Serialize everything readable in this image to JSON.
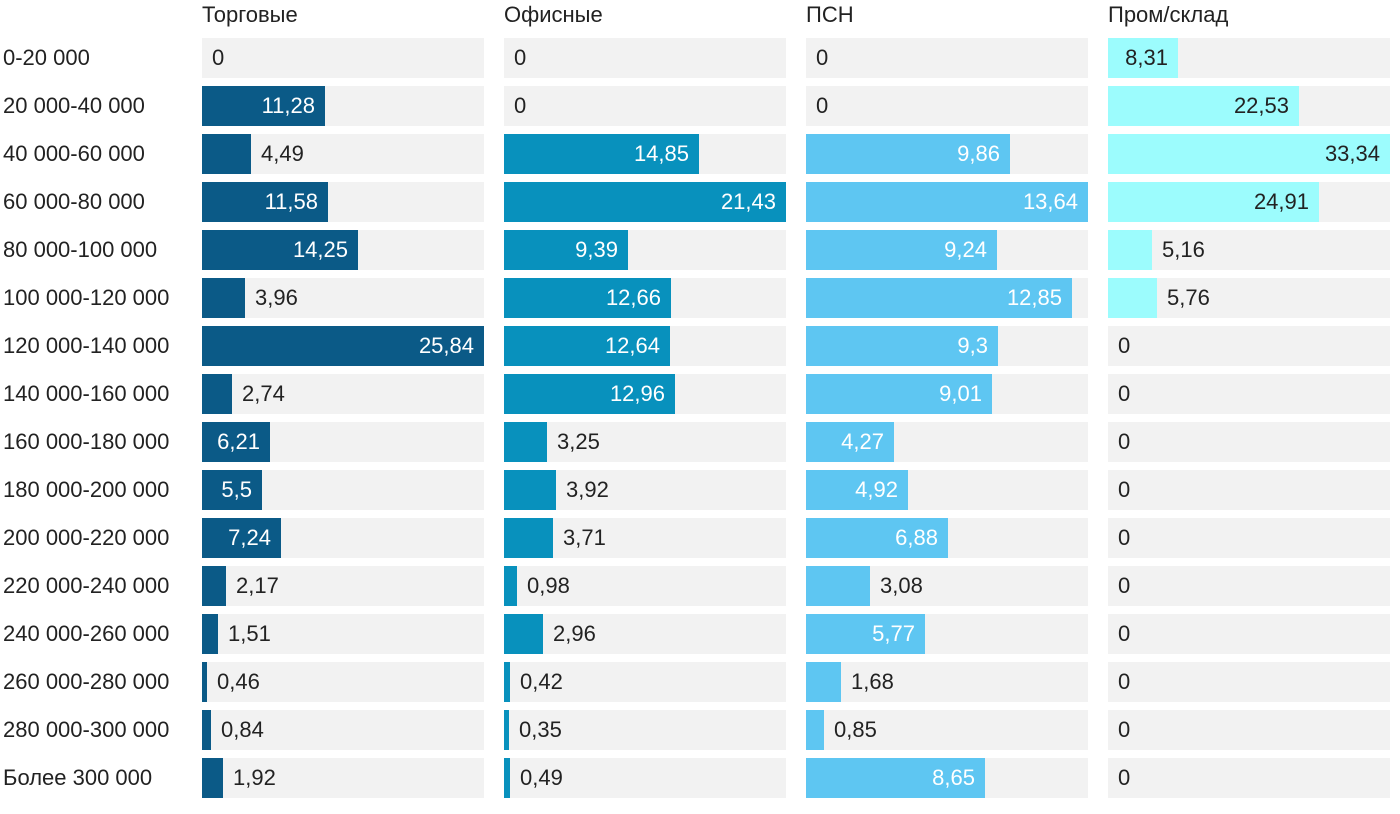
{
  "chart_data": {
    "type": "bar",
    "orientation": "horizontal",
    "layout": "small-multiples",
    "categories": [
      "0-20 000",
      "20 000-40 000",
      "40 000-60 000",
      "60 000-80 000",
      "80 000-100 000",
      "100 000-120 000",
      "120 000-140 000",
      "140 000-160 000",
      "160 000-180 000",
      "180 000-200 000",
      "200 000-220 000",
      "220 000-240 000",
      "240 000-260 000",
      "260 000-280 000",
      "280 000-300 000",
      "Более 300 000"
    ],
    "series": [
      {
        "name": "Торговые",
        "color": "#0b5a87",
        "values": [
          0,
          11.28,
          4.49,
          11.58,
          14.25,
          3.96,
          25.84,
          2.74,
          6.21,
          5.5,
          7.24,
          2.17,
          1.51,
          0.46,
          0.84,
          1.92
        ],
        "labels": [
          "0",
          "11,28",
          "4,49",
          "11,58",
          "14,25",
          "3,96",
          "25,84",
          "2,74",
          "6,21",
          "5,5",
          "7,24",
          "2,17",
          "1,51",
          "0,46",
          "0,84",
          "1,92"
        ]
      },
      {
        "name": "Офисные",
        "color": "#0891bd",
        "values": [
          0,
          0,
          14.85,
          21.43,
          9.39,
          12.66,
          12.64,
          12.96,
          3.25,
          3.92,
          3.71,
          0.98,
          2.96,
          0.42,
          0.35,
          0.49
        ],
        "labels": [
          "0",
          "0",
          "14,85",
          "21,43",
          "9,39",
          "12,66",
          "12,64",
          "12,96",
          "3,25",
          "3,92",
          "3,71",
          "0,98",
          "2,96",
          "0,42",
          "0,35",
          "0,49"
        ]
      },
      {
        "name": "ПСН",
        "color": "#5ec6f2",
        "values": [
          0,
          0,
          9.86,
          13.64,
          9.24,
          12.85,
          9.3,
          9.01,
          4.27,
          4.92,
          6.88,
          3.08,
          5.77,
          1.68,
          0.85,
          8.65
        ],
        "labels": [
          "0",
          "0",
          "9,86",
          "13,64",
          "9,24",
          "12,85",
          "9,3",
          "9,01",
          "4,27",
          "4,92",
          "6,88",
          "3,08",
          "5,77",
          "1,68",
          "0,85",
          "8,65"
        ]
      },
      {
        "name": "Пром/склад",
        "color": "#9cfcfd",
        "values": [
          8.31,
          22.53,
          33.34,
          24.91,
          5.16,
          5.76,
          0,
          0,
          0,
          0,
          0,
          0,
          0,
          0,
          0,
          0
        ],
        "labels": [
          "8,31",
          "22,53",
          "33,34",
          "24,91",
          "5,16",
          "5,76",
          "0",
          "0",
          "0",
          "0",
          "0",
          "0",
          "0",
          "0",
          "0",
          "0"
        ]
      }
    ]
  }
}
